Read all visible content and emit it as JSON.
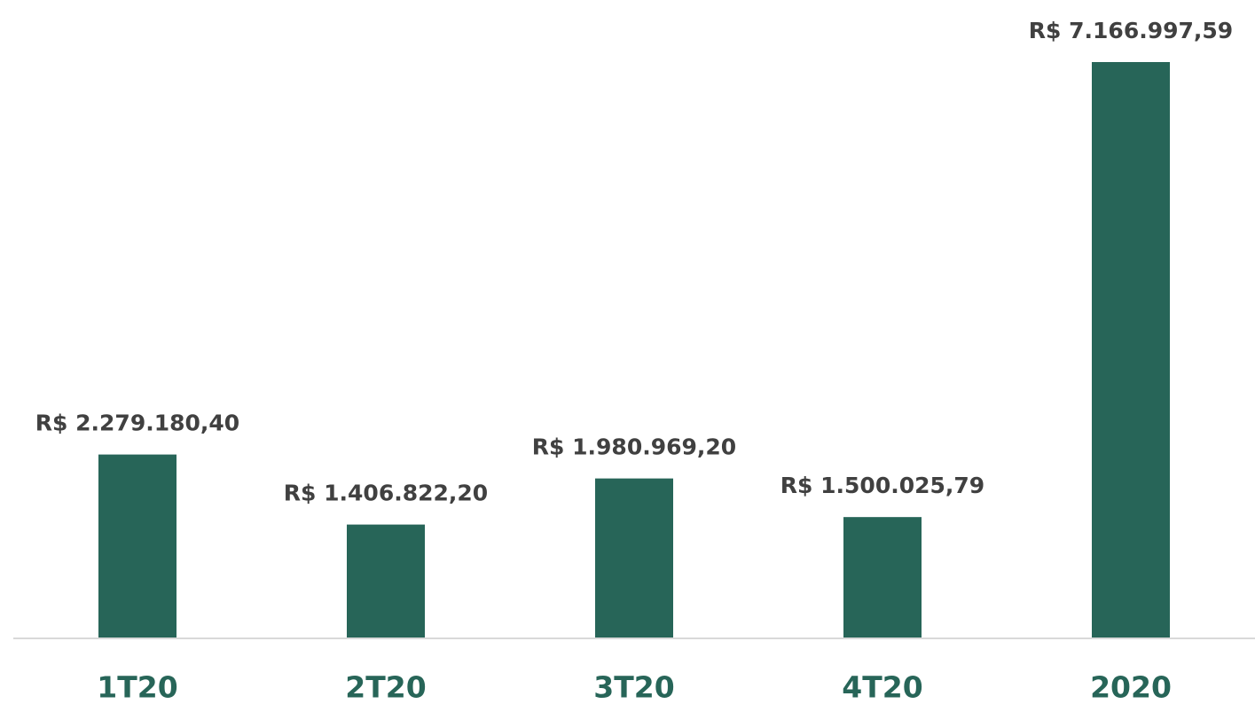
{
  "chart_data": {
    "type": "bar",
    "categories": [
      "1T20",
      "2T20",
      "3T20",
      "4T20",
      "2020"
    ],
    "values": [
      2279180.4,
      1406822.2,
      1980969.2,
      1500025.79,
      7166997.59
    ],
    "value_labels": [
      "R$ 2.279.180,40",
      "R$ 1.406.822,20",
      "R$ 1.980.969,20",
      "R$ 1.500.025,79",
      "R$ 7.166.997,59"
    ],
    "color": "#276558"
  }
}
